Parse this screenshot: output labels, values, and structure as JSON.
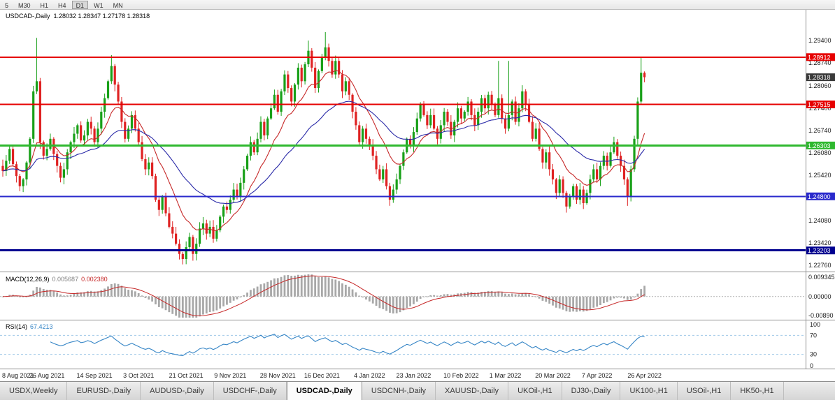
{
  "header": {
    "symbol": "USDCAD-,Daily",
    "ohlc": "1.28032 1.28347 1.27178 1.28318"
  },
  "toolbar": {
    "periods": [
      "5",
      "M30",
      "H1",
      "H4",
      "D1",
      "W1",
      "MN"
    ],
    "active": "D1"
  },
  "indicators": {
    "macd": {
      "title": "MACD(12,26,9)",
      "value1": "0.005687",
      "value2": "0.002380"
    },
    "rsi": {
      "title": "RSI(14)",
      "value": "67.4213"
    }
  },
  "tabs": {
    "items": [
      "USDX,Weekly",
      "EURUSD-,Daily",
      "AUDUSD-,Daily",
      "USDCHF-,Daily",
      "USDCAD-,Daily",
      "USDCNH-,Daily",
      "XAUUSD-,Daily",
      "UKOil-,H1",
      "DJ30-,Daily",
      "UK100-,H1",
      "USOil-,H1",
      "HK50-,H1"
    ],
    "active": "USDCAD-,Daily"
  },
  "chart_data": {
    "type": "candlestick",
    "symbol": "USDCAD-",
    "timeframe": "Daily",
    "title": "USDCAD-,Daily",
    "current": {
      "open": 1.28032,
      "high": 1.28347,
      "low": 1.27178,
      "close": 1.28318,
      "price": 1.28318,
      "label": "1.28318"
    },
    "price_range": [
      1.226,
      1.3031
    ],
    "closes": [
      1.2555,
      1.2585,
      1.262,
      1.2575,
      1.254,
      1.251,
      1.253,
      1.258,
      1.265,
      1.279,
      1.282,
      1.264,
      1.26,
      1.262,
      1.265,
      1.2605,
      1.257,
      1.2535,
      1.256,
      1.261,
      1.264,
      1.2665,
      1.269,
      1.2645,
      1.266,
      1.27,
      1.268,
      1.264,
      1.268,
      1.273,
      1.277,
      1.282,
      1.2865,
      1.281,
      1.276,
      1.27,
      1.265,
      1.268,
      1.272,
      1.268,
      1.264,
      1.259,
      1.256,
      1.258,
      1.254,
      1.247,
      1.244,
      1.248,
      1.243,
      1.239,
      1.237,
      1.234,
      1.231,
      1.2295,
      1.233,
      1.236,
      1.231,
      1.234,
      1.2385,
      1.24,
      1.237,
      1.239,
      1.2355,
      1.238,
      1.242,
      1.245,
      1.244,
      1.247,
      1.25,
      1.248,
      1.252,
      1.256,
      1.26,
      1.264,
      1.261,
      1.265,
      1.27,
      1.266,
      1.271,
      1.274,
      1.278,
      1.273,
      1.279,
      1.284,
      1.28,
      1.276,
      1.281,
      1.286,
      1.282,
      1.287,
      1.291,
      1.286,
      1.28,
      1.285,
      1.289,
      1.292,
      1.288,
      1.284,
      1.288,
      1.284,
      1.279,
      1.282,
      1.278,
      1.273,
      1.269,
      1.264,
      1.268,
      1.265,
      1.263,
      1.26,
      1.256,
      1.253,
      1.256,
      1.251,
      1.247,
      1.25,
      1.253,
      1.257,
      1.261,
      1.265,
      1.263,
      1.267,
      1.271,
      1.275,
      1.272,
      1.269,
      1.272,
      1.268,
      1.265,
      1.269,
      1.273,
      1.27,
      1.266,
      1.27,
      1.274,
      1.271,
      1.273,
      1.276,
      1.272,
      1.269,
      1.273,
      1.277,
      1.274,
      1.278,
      1.275,
      1.272,
      1.277,
      1.271,
      1.268,
      1.272,
      1.276,
      1.27,
      1.274,
      1.279,
      1.275,
      1.27,
      1.265,
      1.268,
      1.262,
      1.258,
      1.261,
      1.256,
      1.253,
      1.249,
      1.253,
      1.249,
      1.245,
      1.248,
      1.251,
      1.247,
      1.25,
      1.246,
      1.249,
      1.253,
      1.256,
      1.253,
      1.257,
      1.26,
      1.257,
      1.261,
      1.264,
      1.26,
      1.257,
      1.253,
      1.248,
      1.256,
      1.265,
      1.276,
      1.2845,
      1.28318
    ],
    "wick_overrides": {
      "10": [
        0.0128,
        0.0008
      ],
      "32": [
        0.0032,
        0.0008
      ],
      "53": [
        0.0006,
        0.0016
      ],
      "56": [
        0.0006,
        0.002
      ],
      "90": [
        0.003,
        0.0008
      ],
      "95": [
        0.0045,
        0.0008
      ],
      "146": [
        0.011,
        0.0008
      ],
      "149": [
        0.016,
        0.0008
      ],
      "166": [
        0.0006,
        0.0018
      ],
      "184": [
        0.0006,
        0.0028
      ],
      "188": [
        0.0045,
        0.0006
      ],
      "189": [
        0.0004,
        0.0015
      ]
    },
    "ma": [
      {
        "period": 12,
        "color_key": "ma_fast"
      },
      {
        "period": 34,
        "color_key": "ma_slow"
      }
    ],
    "levels": [
      {
        "price": 1.28912,
        "label": "1.28912",
        "color": "#e60000",
        "width": 2
      },
      {
        "price": 1.27515,
        "label": "1.27515",
        "color": "#e60000",
        "width": 2
      },
      {
        "price": 1.26303,
        "label": "1.26303",
        "color": "#2eb82e",
        "width": 3
      },
      {
        "price": 1.248,
        "label": "1.24800",
        "color": "#2929cc",
        "width": 2
      },
      {
        "price": 1.23203,
        "label": "1.23203",
        "color": "#000090",
        "width": 3
      }
    ],
    "y_ticks": [
      "1.29400",
      "1.28740",
      "1.28060",
      "1.27400",
      "1.26740",
      "1.26080",
      "1.25420",
      "1.24080",
      "1.23420",
      "1.22760"
    ],
    "x_labels": [
      {
        "i": 0,
        "label": "8 Aug 2021"
      },
      {
        "i": 13,
        "label": "26 Aug 2021"
      },
      {
        "i": 27,
        "label": "14 Sep 2021"
      },
      {
        "i": 40,
        "label": "3 Oct 2021"
      },
      {
        "i": 54,
        "label": "21 Oct 2021"
      },
      {
        "i": 67,
        "label": "9 Nov 2021"
      },
      {
        "i": 81,
        "label": "28 Nov 2021"
      },
      {
        "i": 94,
        "label": "16 Dec 2021"
      },
      {
        "i": 108,
        "label": "4 Jan 2022"
      },
      {
        "i": 121,
        "label": "23 Jan 2022"
      },
      {
        "i": 135,
        "label": "10 Feb 2022"
      },
      {
        "i": 148,
        "label": "1 Mar 2022"
      },
      {
        "i": 162,
        "label": "20 Mar 2022"
      },
      {
        "i": 175,
        "label": "7 Apr 2022"
      },
      {
        "i": 189,
        "label": "26 Apr 2022"
      }
    ],
    "macd_range": [
      -0.0089,
      0.009345
    ],
    "macd_ticks": [
      {
        "v": 0.009345,
        "label": "0.009345"
      },
      {
        "v": 0,
        "label": "0.00000"
      },
      {
        "v": -0.0089,
        "label": "-0.00890"
      }
    ],
    "rsi_levels": [
      70,
      30
    ],
    "rsi_ticks": [
      {
        "v": 100,
        "label": "100"
      },
      {
        "v": 70,
        "label": "70"
      },
      {
        "v": 30,
        "label": "30"
      },
      {
        "v": 0,
        "label": "0"
      }
    ],
    "colors": {
      "up": "#18a018",
      "down": "#df2222",
      "ma_fast": "#c62828",
      "ma_slow": "#2a2aa8",
      "macd_hist": "#a8a8a8",
      "macd_signal": "#c62828",
      "rsi": "#3585c6",
      "current_bg": "#3a3a3a"
    }
  }
}
